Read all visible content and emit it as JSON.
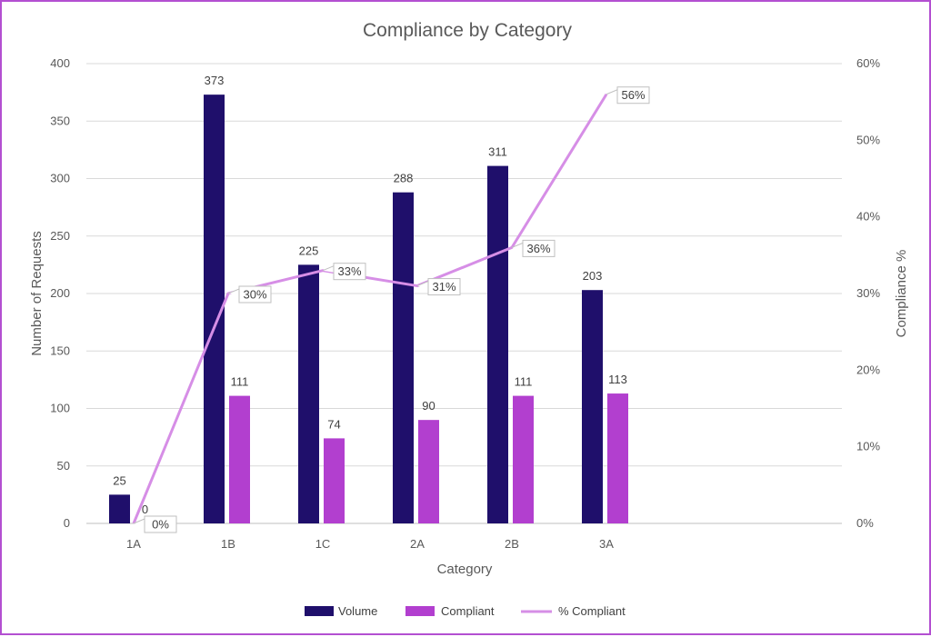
{
  "chart_data": {
    "type": "bar",
    "title": "Compliance by Category",
    "xlabel": "Category",
    "ylabel": "Number of Requests",
    "y2label": "Compliance %",
    "categories": [
      "1A",
      "1B",
      "1C",
      "2A",
      "2B",
      "3A"
    ],
    "ylim": [
      0,
      400
    ],
    "yticks": [
      "0",
      "50",
      "100",
      "150",
      "200",
      "250",
      "300",
      "350",
      "400"
    ],
    "y2lim": [
      0,
      60
    ],
    "y2ticks": [
      "0%",
      "10%",
      "20%",
      "30%",
      "40%",
      "50%",
      "60%"
    ],
    "grid": true,
    "legend_position": "bottom",
    "series": [
      {
        "name": "Volume",
        "type": "bar",
        "axis": "left",
        "color": "#1f0f6b",
        "values": [
          25,
          373,
          225,
          288,
          311,
          203
        ],
        "labels": [
          "25",
          "373",
          "225",
          "288",
          "311",
          "203"
        ]
      },
      {
        "name": "Compliant",
        "type": "bar",
        "axis": "left",
        "color": "#b23fcf",
        "values": [
          0,
          111,
          74,
          90,
          111,
          113
        ],
        "labels": [
          "0",
          "111",
          "74",
          "90",
          "111",
          "113"
        ]
      },
      {
        "name": "% Compliant",
        "type": "line",
        "axis": "right",
        "color": "#d68ee6",
        "values": [
          0,
          30,
          33,
          31,
          36,
          56
        ],
        "labels": [
          "0%",
          "30%",
          "33%",
          "31%",
          "36%",
          "56%"
        ]
      }
    ]
  }
}
